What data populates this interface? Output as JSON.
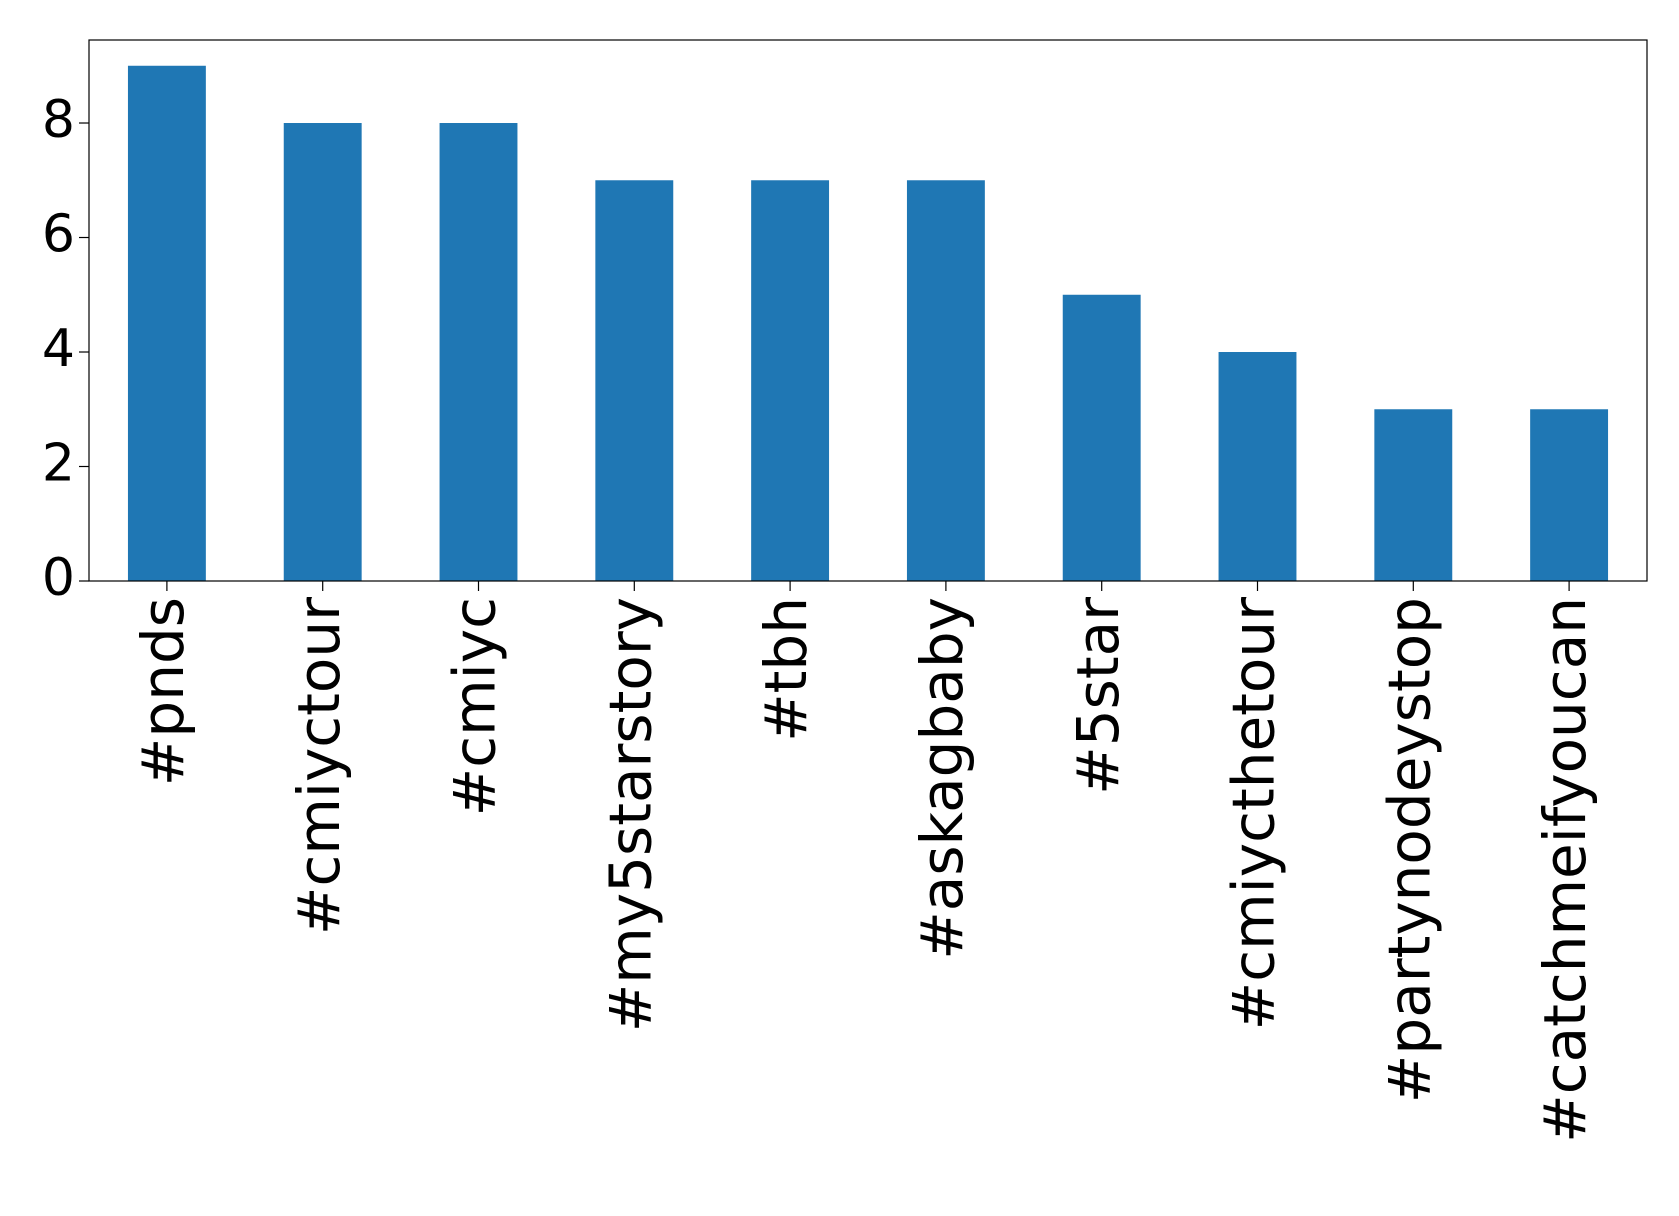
{
  "chart_data": {
    "type": "bar",
    "categories": [
      "#pnds",
      "#cmiyctour",
      "#cmiyc",
      "#my5starstory",
      "#tbh",
      "#askagbaby",
      "#5star",
      "#cmiycthetour",
      "#partynodeystop",
      "#catchmeifyoucan"
    ],
    "values": [
      9,
      8,
      8,
      7,
      7,
      7,
      5,
      4,
      3,
      3
    ],
    "color": "#1f77b4",
    "ylim": [
      0,
      9.45
    ],
    "yticks": [
      0,
      2,
      4,
      6,
      8
    ],
    "grid": false
  }
}
